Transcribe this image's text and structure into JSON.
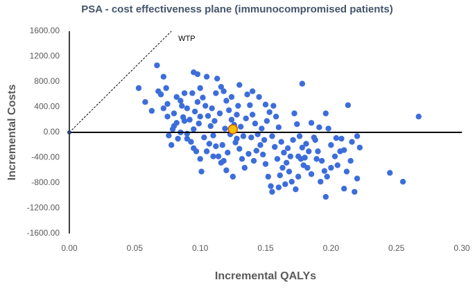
{
  "chart_data": {
    "type": "scatter",
    "title": "PSA - cost effectiveness plane (immunocompromised patients)",
    "xlabel": "Incremental QALYs",
    "ylabel": "Incremental Costs",
    "color": "#3c6ddb",
    "x": [
      0.053,
      0.067,
      0.072,
      0.095,
      0.098,
      0.178,
      0.213,
      0.267,
      0.245,
      0.255,
      0.196,
      0.218,
      0.21,
      0.22,
      0.101,
      0.058,
      0.063,
      0.07,
      0.075,
      0.08,
      0.082,
      0.078,
      0.085,
      0.088,
      0.09,
      0.092,
      0.095,
      0.093,
      0.097,
      0.1,
      0.102,
      0.104,
      0.106,
      0.108,
      0.11,
      0.112,
      0.114,
      0.116,
      0.105,
      0.113,
      0.118,
      0.12,
      0.122,
      0.124,
      0.126,
      0.128,
      0.13,
      0.132,
      0.134,
      0.136,
      0.138,
      0.14,
      0.142,
      0.144,
      0.146,
      0.148,
      0.15,
      0.152,
      0.154,
      0.156,
      0.158,
      0.16,
      0.162,
      0.164,
      0.166,
      0.168,
      0.17,
      0.172,
      0.174,
      0.176,
      0.178,
      0.18,
      0.182,
      0.185,
      0.188,
      0.19,
      0.193,
      0.196,
      0.198,
      0.2,
      0.203,
      0.205,
      0.208,
      0.21,
      0.215,
      0.22,
      0.222,
      0.14,
      0.145,
      0.15,
      0.155,
      0.16,
      0.165,
      0.175,
      0.185,
      0.195,
      0.13,
      0.125,
      0.12,
      0.118,
      0.11,
      0.1,
      0.095,
      0.09,
      0.085,
      0.08,
      0.075,
      0.072,
      0.068,
      0.074,
      0.082,
      0.087,
      0.09,
      0.096,
      0.099,
      0.103,
      0.107,
      0.111,
      0.115,
      0.119,
      0.123,
      0.127,
      0.131,
      0.135,
      0.139,
      0.143,
      0.147,
      0.151,
      0.155,
      0.159,
      0.163,
      0.167,
      0.171,
      0.175,
      0.179,
      0.183,
      0.187,
      0.191,
      0.197,
      0.2,
      0.204,
      0.207,
      0.212,
      0.216,
      0.105,
      0.109,
      0.117,
      0.121,
      0.129,
      0.133,
      0.137,
      0.141,
      0.149,
      0.153,
      0.157,
      0.161,
      0.169,
      0.173,
      0.177,
      0.181,
      0.189,
      0.192,
      0.1,
      0.098,
      0.094,
      0.086,
      0.083,
      0.079,
      0.076,
      0.088,
      0.112,
      0.116,
      0.124,
      0.128
    ],
    "values": [
      700,
      1060,
      880,
      950,
      920,
      770,
      430,
      250,
      -640,
      -780,
      -1020,
      -940,
      -890,
      -730,
      -620,
      480,
      340,
      600,
      450,
      300,
      150,
      -200,
      500,
      620,
      380,
      200,
      50,
      -150,
      -300,
      700,
      550,
      420,
      260,
      100,
      -50,
      -220,
      -380,
      -480,
      880,
      850,
      650,
      500,
      350,
      200,
      120,
      -100,
      -260,
      -420,
      -560,
      600,
      430,
      280,
      140,
      -30,
      -200,
      -350,
      -500,
      -700,
      -850,
      420,
      250,
      80,
      -150,
      -320,
      -480,
      -620,
      -780,
      300,
      130,
      -60,
      -240,
      -400,
      -560,
      150,
      -120,
      -300,
      -450,
      300,
      60,
      -200,
      -380,
      -520,
      -100,
      -280,
      -450,
      -60,
      -240,
      650,
      560,
      440,
      -940,
      -870,
      -820,
      -700,
      -660,
      -610,
      750,
      -700,
      -600,
      -450,
      -380,
      -420,
      -250,
      -100,
      0,
      100,
      250,
      380,
      650,
      700,
      560,
      240,
      -20,
      330,
      140,
      -80,
      -180,
      180,
      300,
      60,
      -30,
      -160,
      90,
      220,
      -80,
      -290,
      60,
      180,
      -60,
      -420,
      -560,
      -250,
      -120,
      -380,
      -520,
      -300,
      -80,
      80,
      -700,
      -560,
      -90,
      -300,
      -620,
      -150,
      -300,
      380,
      -200,
      -320,
      420,
      -60,
      -340,
      -450,
      -120,
      320,
      -230,
      -680,
      -380,
      -900,
      -420,
      -180,
      -420,
      -780,
      250,
      480,
      620,
      420,
      -100,
      50,
      -50,
      180,
      620,
      720,
      560,
      280
    ],
    "mean_point": {
      "x": 0.125,
      "y": 50,
      "color": "#ffc000"
    },
    "origin_point": {
      "x": 0,
      "y": 0,
      "color": "#2f3f6b"
    },
    "wtp_line": {
      "label": "WTP",
      "x": [
        0,
        0.078
      ],
      "y": [
        0,
        1600
      ]
    },
    "xlim": [
      0,
      0.3
    ],
    "ylim": [
      -1600,
      1600
    ],
    "xticks": [
      {
        "value": 0,
        "label": "0.00"
      },
      {
        "value": 0.05,
        "label": "0.05"
      },
      {
        "value": 0.1,
        "label": "0.10"
      },
      {
        "value": 0.15,
        "label": "0.15"
      },
      {
        "value": 0.2,
        "label": "0.20"
      },
      {
        "value": 0.25,
        "label": "0.25"
      },
      {
        "value": 0.3,
        "label": "0.30"
      }
    ],
    "yticks": [
      {
        "value": 1600,
        "label": "1600.00"
      },
      {
        "value": 1200,
        "label": "1200.00"
      },
      {
        "value": 800,
        "label": "800.00"
      },
      {
        "value": 400,
        "label": "400.00"
      },
      {
        "value": 0,
        "label": "0.00"
      },
      {
        "value": -400,
        "label": "-400.00"
      },
      {
        "value": -800,
        "label": "-800.00"
      },
      {
        "value": -1200,
        "label": "-1200.00"
      },
      {
        "value": -1600,
        "label": "-1600.00"
      }
    ],
    "grid": false
  }
}
